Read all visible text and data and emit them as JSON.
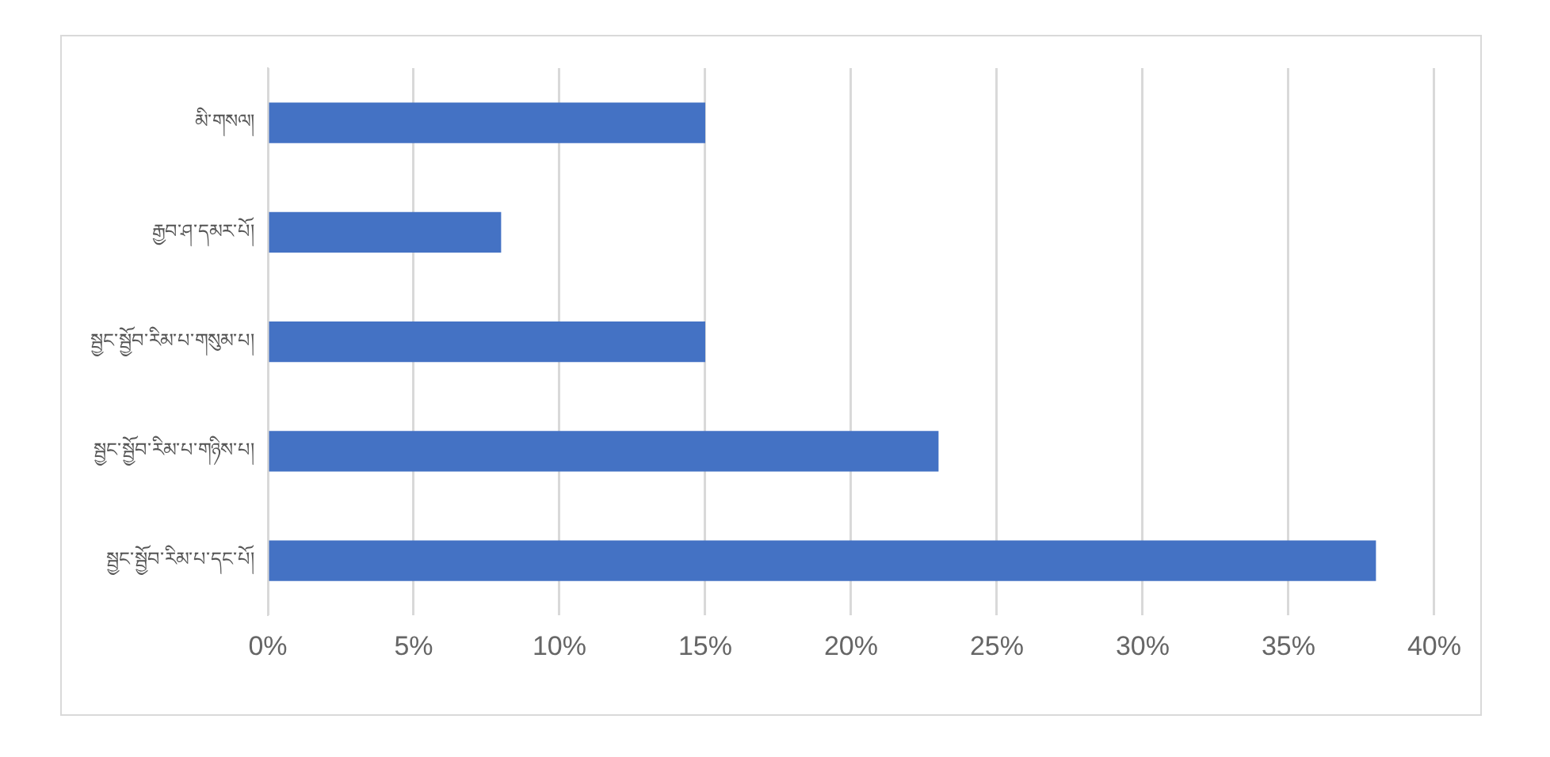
{
  "chart_data": {
    "type": "bar",
    "orientation": "horizontal",
    "categories": [
      "མི་གསལ།",
      "རྒྱབ་ཤ་དམར་པོ།",
      "སྦྱང་སྦྱོབ་རིམ་པ་གསུམ་པ།",
      "སྦྱང་སྦྱོབ་རིམ་པ་གཉིས་པ།",
      "སྦྱང་སྦྱོབ་རིམ་པ་དང་པོ།"
    ],
    "values": [
      15,
      8,
      15,
      23,
      38
    ],
    "color": "#4472c4",
    "xlim": [
      0,
      40
    ],
    "xticks": [
      {
        "value": 0,
        "label": "0%"
      },
      {
        "value": 5,
        "label": "5%"
      },
      {
        "value": 10,
        "label": "10%"
      },
      {
        "value": 15,
        "label": "15%"
      },
      {
        "value": 20,
        "label": "20%"
      },
      {
        "value": 25,
        "label": "25%"
      },
      {
        "value": 30,
        "label": "30%"
      },
      {
        "value": 35,
        "label": "35%"
      },
      {
        "value": 40,
        "label": "40%"
      }
    ],
    "grid": "x",
    "legend": false
  }
}
